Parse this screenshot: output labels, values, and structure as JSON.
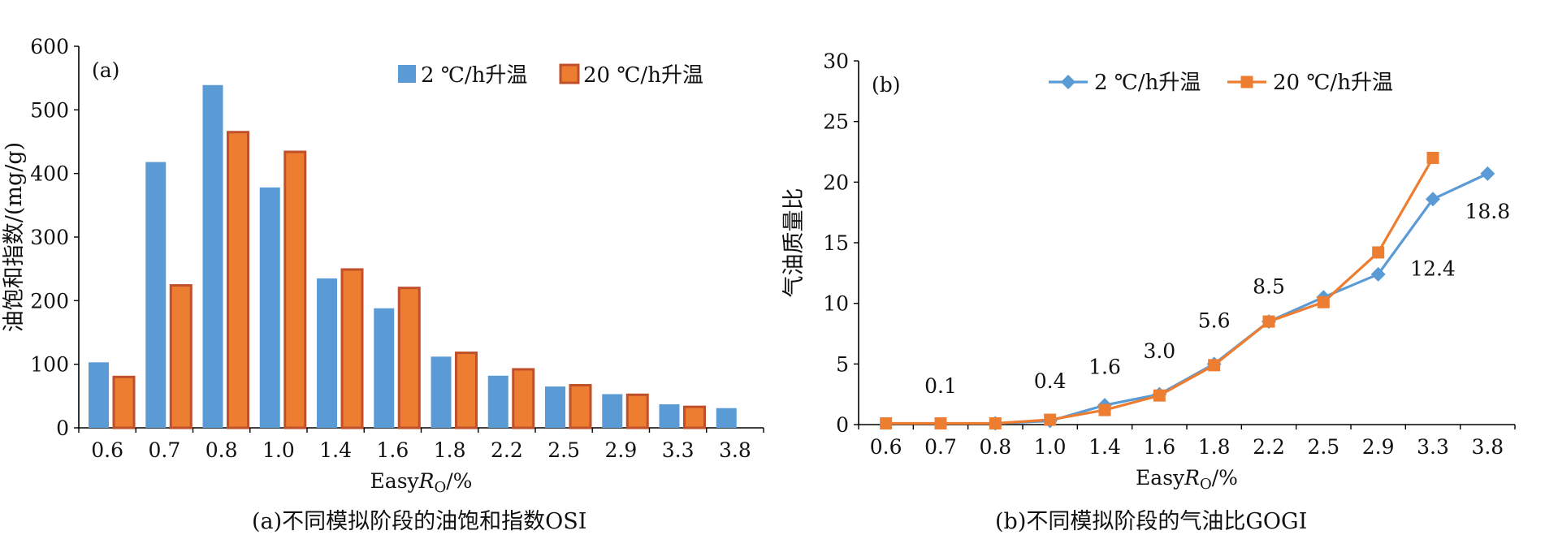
{
  "chart_data": [
    {
      "type": "bar",
      "panel_label": "(a)",
      "xlabel": "EasyRo/%",
      "xlabel_parts": {
        "prefix": "Easy",
        "italic": "R",
        "sub": "O",
        "suffix": "/%"
      },
      "ylabel": "油饱和指数/(mg/g)",
      "ylim": [
        0,
        600
      ],
      "yticks": [
        "0",
        "100",
        "200",
        "300",
        "400",
        "500",
        "600"
      ],
      "categories": [
        "0.6",
        "0.7",
        "0.8",
        "1.0",
        "1.4",
        "1.6",
        "1.8",
        "2.2",
        "2.5",
        "2.9",
        "3.3",
        "3.8"
      ],
      "series": [
        {
          "name": "2 ℃/h升温",
          "color": "#5b9bd5",
          "values": [
            103,
            418,
            539,
            378,
            235,
            188,
            112,
            82,
            65,
            53,
            37,
            31
          ]
        },
        {
          "name": "20 ℃/h升温",
          "color": "#ed7d31",
          "border": "#c0502a",
          "values": [
            80,
            224,
            465,
            434,
            249,
            220,
            118,
            92,
            67,
            52,
            33,
            null
          ]
        }
      ],
      "legend_position": "top-right",
      "caption": "(a)不同模拟阶段的油饱和指数OSI"
    },
    {
      "type": "line",
      "panel_label": "(b)",
      "xlabel": "EasyRo/%",
      "xlabel_parts": {
        "prefix": "Easy",
        "italic": "R",
        "sub": "O",
        "suffix": "/%"
      },
      "ylabel": "气油质量比",
      "ylim": [
        0,
        30
      ],
      "yticks": [
        "0",
        "5",
        "10",
        "15",
        "20",
        "25",
        "30"
      ],
      "categories": [
        "0.6",
        "0.7",
        "0.8",
        "1.0",
        "1.4",
        "1.6",
        "1.8",
        "2.2",
        "2.5",
        "2.9",
        "3.3",
        "3.8"
      ],
      "series": [
        {
          "name": "2 ℃/h升温",
          "color": "#5b9bd5",
          "marker": "diamond",
          "values": [
            null,
            null,
            0.1,
            0.3,
            1.6,
            2.5,
            5.0,
            8.5,
            10.5,
            12.4,
            18.6,
            20.7
          ]
        },
        {
          "name": "20 ℃/h升温",
          "color": "#ed7d31",
          "marker": "square",
          "values": [
            0.1,
            0.1,
            0.1,
            0.4,
            1.2,
            2.4,
            4.9,
            8.5,
            10.1,
            14.2,
            22.0,
            null
          ]
        }
      ],
      "annotations": [
        {
          "text": "0.1",
          "x": "0.7",
          "y": 2.6
        },
        {
          "text": "0.4",
          "x": "1.0",
          "y": 3.0
        },
        {
          "text": "1.6",
          "x": "1.4",
          "y": 4.2
        },
        {
          "text": "3.0",
          "x": "1.6",
          "y": 5.5
        },
        {
          "text": "5.6",
          "x": "1.8",
          "y": 8.0
        },
        {
          "text": "8.5",
          "x": "2.2",
          "y": 10.8
        },
        {
          "text": "12.4",
          "x": "3.3",
          "y": 12.3
        },
        {
          "text": "18.8",
          "x": "3.8",
          "y": 17.0
        }
      ],
      "legend_position": "top-center",
      "caption": "(b)不同模拟阶段的气油比GOGI"
    }
  ]
}
